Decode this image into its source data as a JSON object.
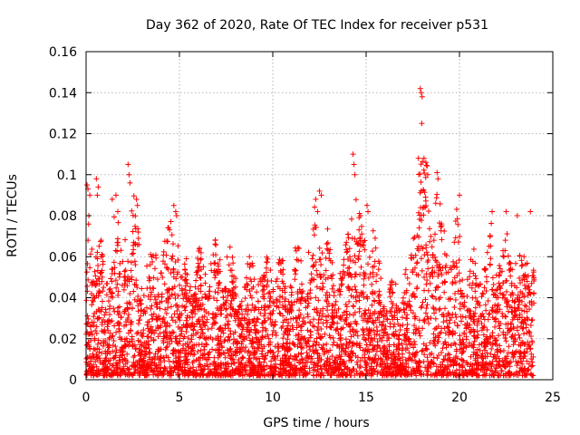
{
  "chart_data": {
    "type": "scatter",
    "title": "Day 362 of 2020, Rate Of TEC Index for receiver p531",
    "xlabel": "GPS time / hours",
    "ylabel": "ROTI / TECUs",
    "xlim": [
      0,
      25
    ],
    "ylim": [
      0,
      0.16
    ],
    "x_ticks": [
      "0",
      "5",
      "10",
      "15",
      "20",
      "25"
    ],
    "y_ticks": [
      "0",
      "0.02",
      "0.04",
      "0.06",
      "0.08",
      "0.1",
      "0.12",
      "0.14",
      "0.16"
    ],
    "grid": true,
    "marker": "plus",
    "color": "#ff0000",
    "x_range_of_data": [
      0,
      24
    ],
    "envelope": {
      "x": [
        0,
        0.1,
        0.3,
        0.6,
        1.0,
        1.5,
        2.0,
        2.4,
        2.7,
        3.2,
        3.8,
        4.3,
        4.8,
        5.2,
        5.8,
        6.4,
        7.0,
        7.6,
        8.2,
        8.8,
        9.4,
        10.0,
        10.6,
        11.2,
        11.8,
        12.3,
        12.7,
        13.2,
        13.8,
        14.3,
        14.8,
        15.2,
        15.8,
        16.3,
        16.9,
        17.4,
        17.9,
        18.3,
        18.8,
        19.3,
        19.8,
        20.3,
        20.8,
        21.3,
        21.8,
        22.3,
        22.8,
        23.3,
        23.8,
        24.0
      ],
      "y": [
        0.04,
        0.095,
        0.07,
        0.098,
        0.05,
        0.09,
        0.07,
        0.105,
        0.085,
        0.06,
        0.07,
        0.08,
        0.085,
        0.06,
        0.065,
        0.066,
        0.07,
        0.07,
        0.055,
        0.063,
        0.065,
        0.065,
        0.06,
        0.07,
        0.06,
        0.088,
        0.092,
        0.06,
        0.065,
        0.11,
        0.08,
        0.085,
        0.055,
        0.05,
        0.05,
        0.06,
        0.142,
        0.108,
        0.101,
        0.075,
        0.09,
        0.06,
        0.065,
        0.082,
        0.08,
        0.07,
        0.08,
        0.06,
        0.082,
        0.07
      ]
    },
    "data_points": [
      [
        0.05,
        0.095
      ],
      [
        0.1,
        0.093
      ],
      [
        0.2,
        0.09
      ],
      [
        0.15,
        0.08
      ],
      [
        0.55,
        0.098
      ],
      [
        0.65,
        0.094
      ],
      [
        0.6,
        0.09
      ],
      [
        1.4,
        0.088
      ],
      [
        1.6,
        0.09
      ],
      [
        1.7,
        0.082
      ],
      [
        2.25,
        0.105
      ],
      [
        2.3,
        0.1
      ],
      [
        2.35,
        0.096
      ],
      [
        2.7,
        0.088
      ],
      [
        2.75,
        0.085
      ],
      [
        4.7,
        0.085
      ],
      [
        4.8,
        0.082
      ],
      [
        4.85,
        0.08
      ],
      [
        12.3,
        0.088
      ],
      [
        12.5,
        0.092
      ],
      [
        12.6,
        0.09
      ],
      [
        12.4,
        0.082
      ],
      [
        14.3,
        0.11
      ],
      [
        14.35,
        0.105
      ],
      [
        14.4,
        0.1
      ],
      [
        14.7,
        0.08
      ],
      [
        15.05,
        0.085
      ],
      [
        15.1,
        0.082
      ],
      [
        17.9,
        0.142
      ],
      [
        17.95,
        0.14
      ],
      [
        18.0,
        0.138
      ],
      [
        17.98,
        0.125
      ],
      [
        17.8,
        0.108
      ],
      [
        18.1,
        0.108
      ],
      [
        18.2,
        0.106
      ],
      [
        18.3,
        0.1
      ],
      [
        18.8,
        0.101
      ],
      [
        18.85,
        0.098
      ],
      [
        20.0,
        0.09
      ],
      [
        21.75,
        0.082
      ],
      [
        22.5,
        0.082
      ],
      [
        23.1,
        0.08
      ],
      [
        23.8,
        0.082
      ]
    ]
  }
}
